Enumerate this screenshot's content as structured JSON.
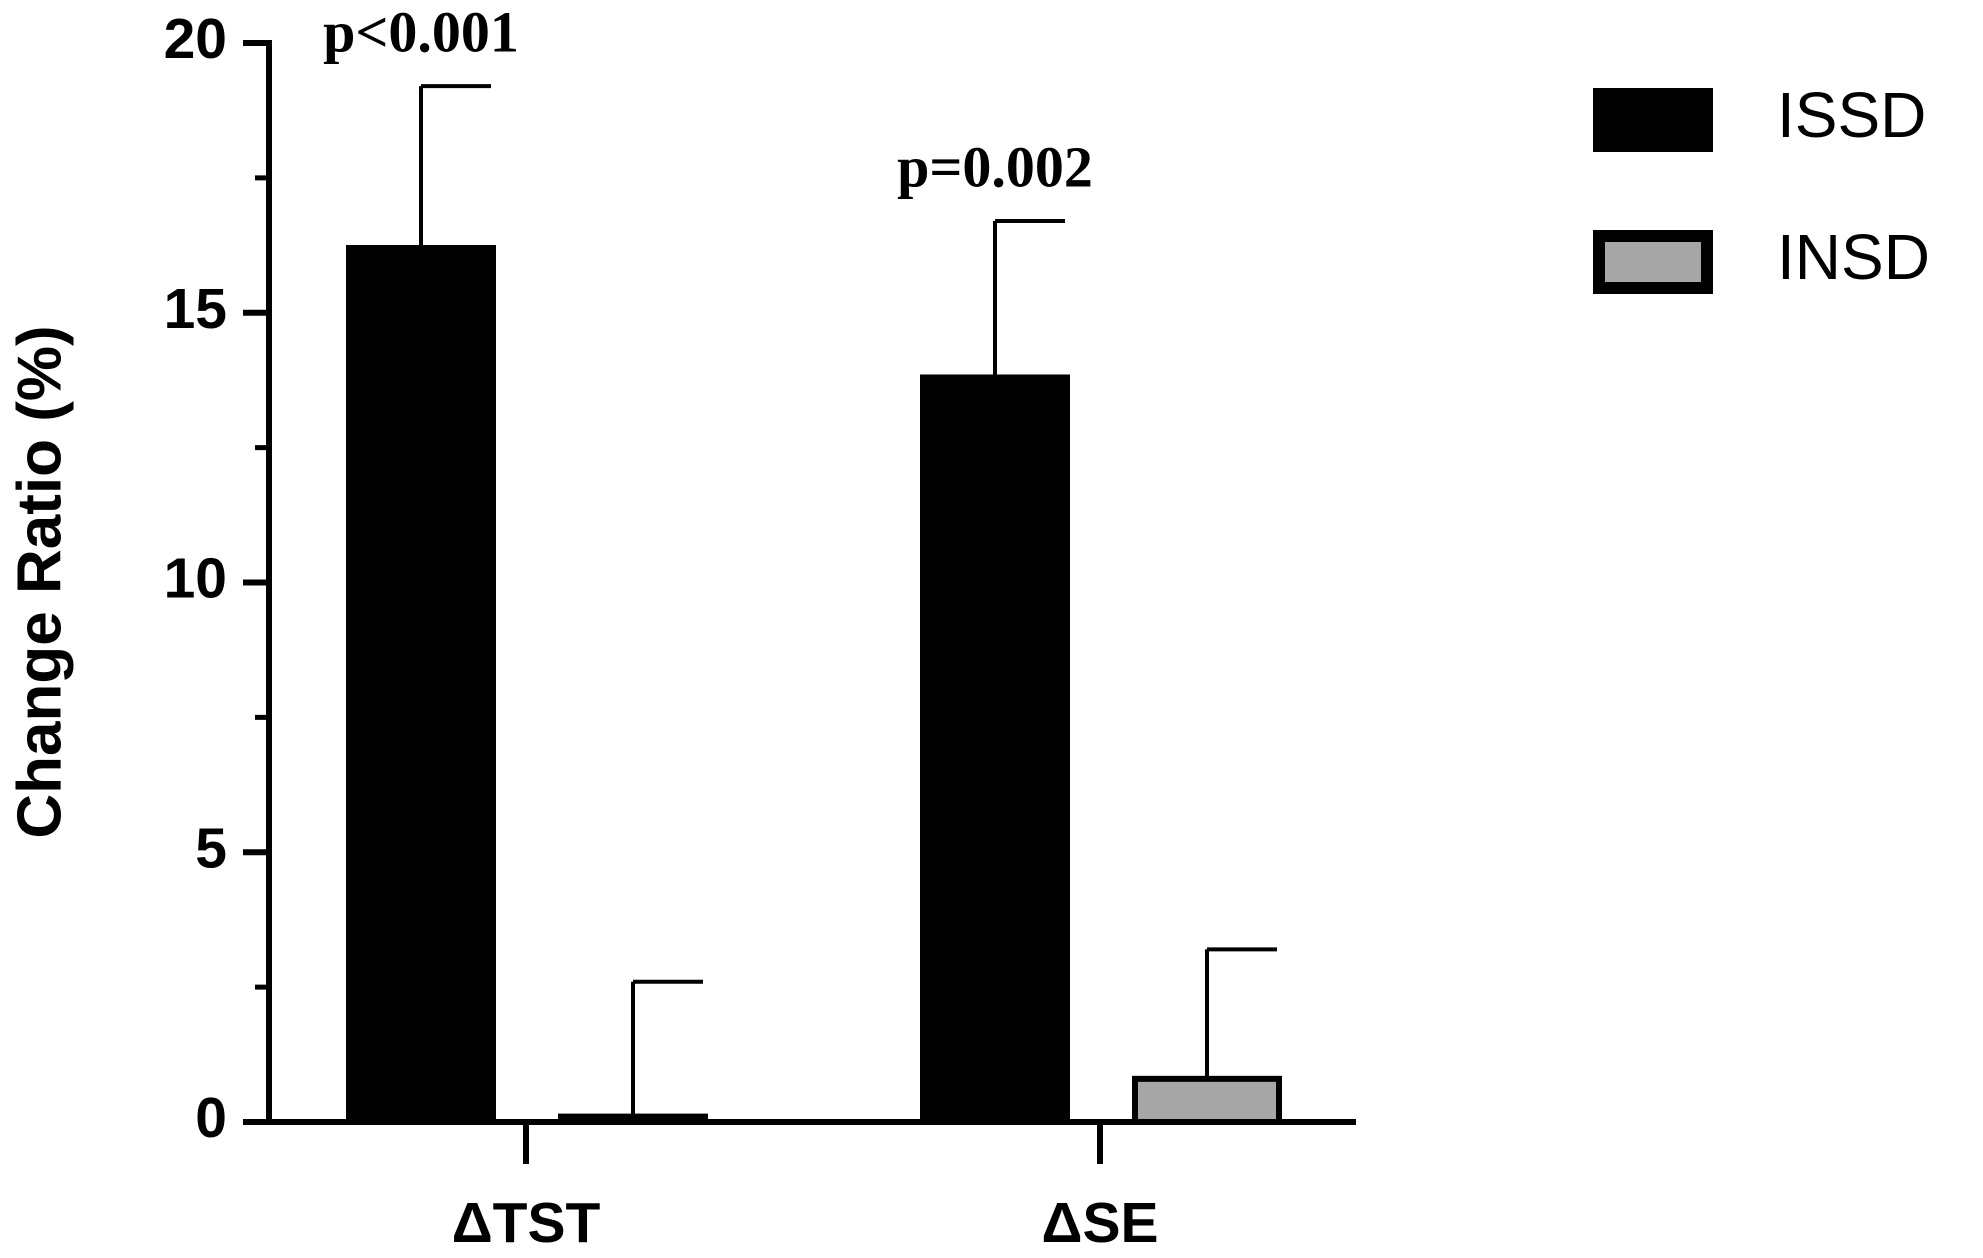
{
  "chart_data": {
    "type": "bar",
    "y_label": "Change Ratio (%)",
    "categories": [
      "ΔTST",
      "ΔSE"
    ],
    "series": [
      {
        "name": "ISSD",
        "color": "#000000",
        "values": [
          16.2,
          13.8
        ],
        "errors": [
          3.0,
          2.9
        ]
      },
      {
        "name": "INSD",
        "color": "#a6a6a6",
        "values": [
          0.1,
          0.8
        ],
        "errors": [
          2.5,
          2.4
        ]
      }
    ],
    "annotations": [
      "p<0.001",
      "p=0.002"
    ],
    "ylim": [
      0,
      20
    ],
    "yticks": [
      0,
      5,
      10,
      15,
      20
    ],
    "yminor": [
      2.5,
      7.5,
      12.5,
      17.5
    ],
    "grid": false,
    "legend": "top-right"
  }
}
